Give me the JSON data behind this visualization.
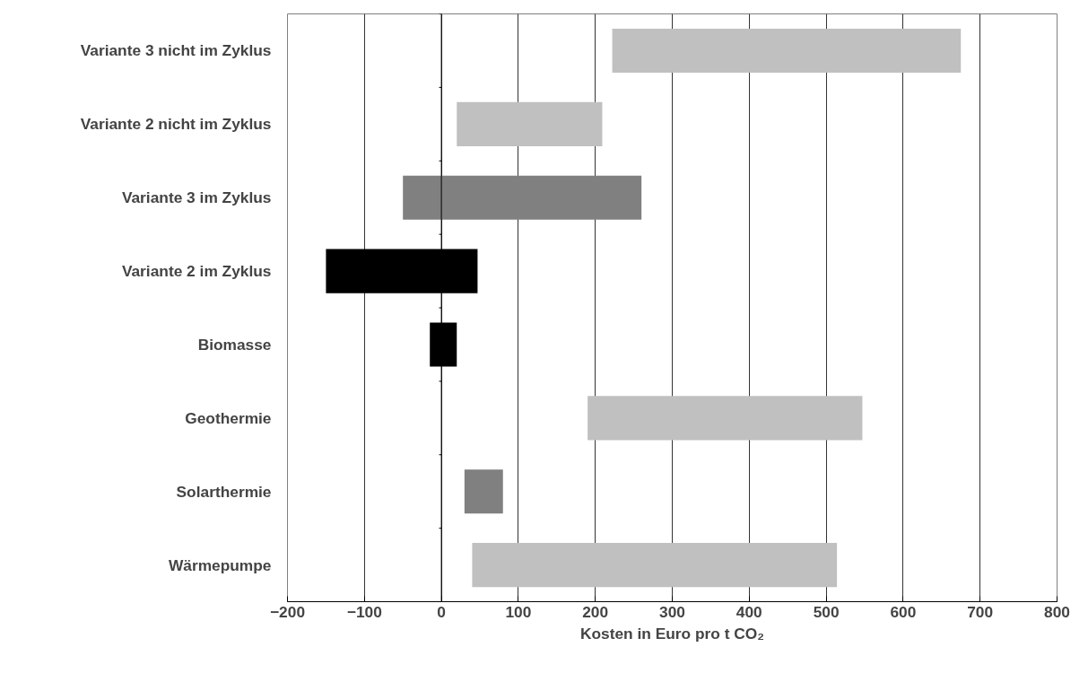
{
  "chart_data": {
    "type": "bar",
    "orientation": "horizontal",
    "xlabel": "Kosten in Euro pro t CO₂",
    "categories": [
      "Variante 3 nicht im Zyklus",
      "Variante 2 nicht im Zyklus",
      "Variante 3 im Zyklus",
      "Variante 2 im Zyklus",
      "Biomasse",
      "Geothermie",
      "Solarthermie",
      "Wärmepumpe"
    ],
    "base": [
      222,
      20,
      -50,
      -150,
      -15,
      190,
      30,
      40
    ],
    "values": [
      453,
      189,
      310,
      197,
      35,
      357,
      50,
      474
    ],
    "colors": [
      "#c0c0c0",
      "#c0c0c0",
      "#808080",
      "#000000",
      "#000000",
      "#c0c0c0",
      "#808080",
      "#c0c0c0"
    ],
    "xlim": [
      -200,
      800
    ],
    "xticks": [
      -200,
      -100,
      0,
      100,
      200,
      300,
      400,
      500,
      600,
      700,
      800
    ],
    "grid": "x"
  }
}
